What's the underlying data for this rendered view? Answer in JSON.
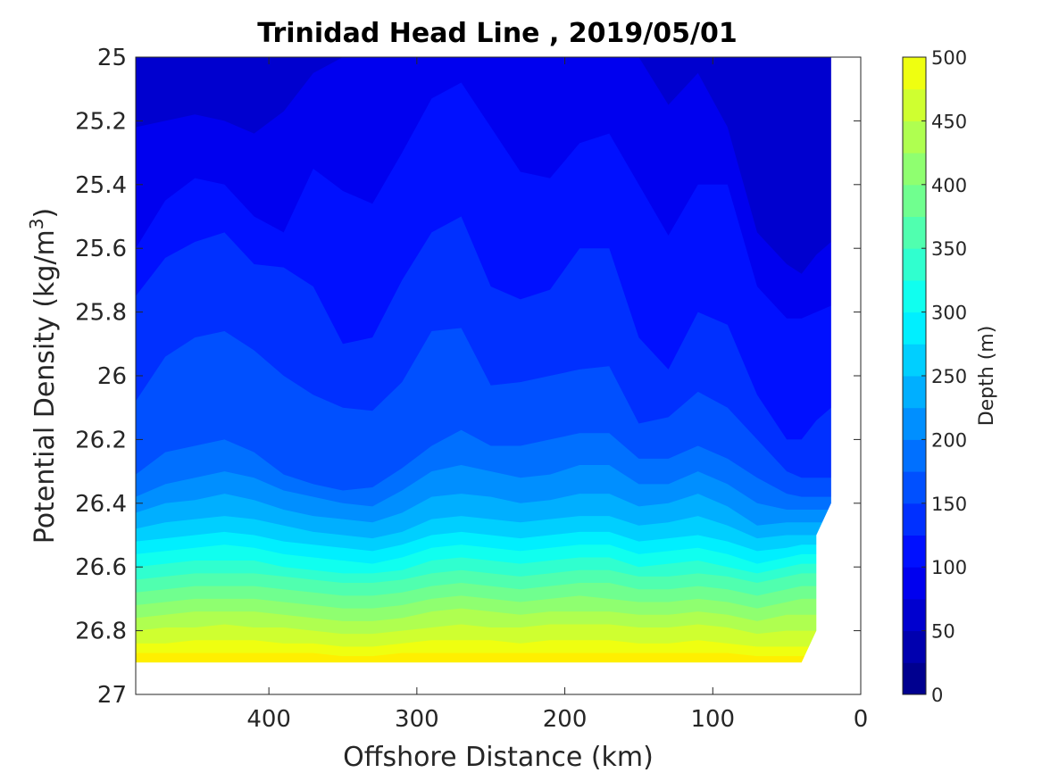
{
  "chart_data": {
    "type": "contour",
    "title": "Trinidad Head Line , 2019/05/01",
    "xlabel": "Offshore Distance (km)",
    "ylabel": "Potential Density (kg/m",
    "ylabel_superscript": "3",
    "ylabel_close": ")",
    "xlim": [
      490,
      0
    ],
    "ylim": [
      25,
      27
    ],
    "x_reversed": true,
    "y_reversed": true,
    "xticks": [
      400,
      300,
      200,
      100,
      0
    ],
    "yticks": [
      "25",
      "25.2",
      "25.4",
      "25.6",
      "25.8",
      "26",
      "26.2",
      "26.4",
      "26.6",
      "26.8",
      "27"
    ],
    "yticks_values": [
      25,
      25.2,
      25.4,
      25.6,
      25.8,
      26,
      26.2,
      26.4,
      26.6,
      26.8,
      27
    ],
    "colorbar": {
      "label": "Depth (m)",
      "range": [
        0,
        500
      ],
      "tick_values": [
        0,
        50,
        100,
        150,
        200,
        250,
        300,
        350,
        400,
        450,
        500
      ],
      "tick_labels": [
        "0",
        "50",
        "100",
        "150",
        "200",
        "250",
        "300",
        "350",
        "400",
        "450",
        "500"
      ],
      "level_step": 25
    },
    "colormap": [
      "#00008f",
      "#0000af",
      "#0000cf",
      "#0000ef",
      "#0010ff",
      "#0030ff",
      "#0050ff",
      "#0070ff",
      "#008fff",
      "#00afff",
      "#00cfff",
      "#00efff",
      "#10ffef",
      "#30ffcf",
      "#50ffaf",
      "#70ff8f",
      "#8fff70",
      "#afff50",
      "#cfff30",
      "#efff10",
      "#ffef00",
      "#ffcf00",
      "#ffaf00",
      "#ff8f00",
      "#ff7000",
      "#ff5000",
      "#ff3000",
      "#ff1000",
      "#ef0000",
      "#cf0000",
      "#af0000"
    ],
    "x": [
      490,
      470,
      450,
      430,
      410,
      390,
      370,
      350,
      330,
      310,
      290,
      270,
      250,
      230,
      210,
      190,
      170,
      150,
      130,
      110,
      90,
      70,
      50,
      40,
      30,
      20
    ],
    "contours": [
      {
        "depth": 25,
        "sigma": [
          25.0,
          25.0,
          25.0,
          25.0,
          25.0,
          25.0,
          25.0,
          25.0,
          25.0,
          25.0,
          25.0,
          25.0,
          25.0,
          25.0,
          25.0,
          25.0,
          25.0,
          25.0,
          25.0,
          25.0,
          25.0,
          25.0,
          25.0,
          25.0,
          25.0,
          25.0
        ]
      },
      {
        "depth": 50,
        "sigma": [
          25.0,
          25.0,
          25.0,
          25.0,
          25.0,
          25.0,
          25.0,
          25.0,
          25.0,
          25.0,
          25.0,
          25.0,
          25.0,
          25.0,
          25.0,
          25.0,
          25.0,
          25.0,
          25.0,
          25.0,
          25.0,
          25.0,
          25.0,
          25.0,
          25.0,
          25.0
        ]
      },
      {
        "depth": 75,
        "sigma": [
          25.22,
          25.2,
          25.18,
          25.2,
          25.24,
          25.17,
          25.05,
          25.0,
          25.0,
          25.0,
          25.0,
          25.0,
          25.0,
          25.0,
          25.0,
          25.0,
          25.0,
          25.0,
          25.15,
          25.05,
          25.22,
          25.55,
          25.65,
          25.68,
          25.62,
          25.58
        ]
      },
      {
        "depth": 100,
        "sigma": [
          25.6,
          25.45,
          25.38,
          25.4,
          25.5,
          25.55,
          25.35,
          25.42,
          25.46,
          25.3,
          25.13,
          25.08,
          25.22,
          25.36,
          25.38,
          25.27,
          25.24,
          25.4,
          25.56,
          25.4,
          25.4,
          25.72,
          25.82,
          25.82,
          25.8,
          25.78
        ]
      },
      {
        "depth": 125,
        "sigma": [
          25.75,
          25.63,
          25.58,
          25.55,
          25.65,
          25.66,
          25.72,
          25.9,
          25.88,
          25.7,
          25.55,
          25.5,
          25.72,
          25.76,
          25.73,
          25.6,
          25.6,
          25.88,
          25.98,
          25.8,
          25.84,
          26.06,
          26.2,
          26.2,
          26.14,
          26.1
        ]
      },
      {
        "depth": 150,
        "sigma": [
          26.08,
          25.94,
          25.88,
          25.86,
          25.92,
          26.0,
          26.06,
          26.1,
          26.11,
          26.02,
          25.86,
          25.85,
          26.03,
          26.02,
          26.0,
          25.98,
          25.97,
          26.15,
          26.13,
          26.05,
          26.1,
          26.2,
          26.3,
          26.32,
          26.32,
          26.32
        ]
      },
      {
        "depth": 175,
        "sigma": [
          26.31,
          26.24,
          26.22,
          26.2,
          26.24,
          26.31,
          26.34,
          26.36,
          26.35,
          26.29,
          26.22,
          26.17,
          26.22,
          26.22,
          26.2,
          26.18,
          26.18,
          26.26,
          26.26,
          26.22,
          26.26,
          26.32,
          26.37,
          26.38,
          26.38,
          26.38
        ]
      },
      {
        "depth": 200,
        "sigma": [
          26.38,
          26.34,
          26.32,
          26.3,
          26.32,
          26.36,
          26.38,
          26.4,
          26.41,
          26.36,
          26.3,
          26.28,
          26.3,
          26.32,
          26.31,
          26.28,
          26.28,
          26.34,
          26.34,
          26.3,
          26.34,
          26.4,
          26.42,
          26.42,
          26.42,
          26.42
        ]
      },
      {
        "depth": 225,
        "sigma": [
          26.43,
          26.4,
          26.39,
          26.37,
          26.39,
          26.42,
          26.44,
          26.45,
          26.46,
          26.43,
          26.38,
          26.37,
          26.38,
          26.4,
          26.39,
          26.37,
          26.37,
          26.41,
          26.4,
          26.37,
          26.41,
          26.47,
          26.46,
          26.46,
          26.46,
          26.46
        ]
      },
      {
        "depth": 250,
        "sigma": [
          26.48,
          26.46,
          26.45,
          26.44,
          26.45,
          26.47,
          26.49,
          26.5,
          26.51,
          26.49,
          26.45,
          26.44,
          26.45,
          26.46,
          26.45,
          26.44,
          26.44,
          26.47,
          26.46,
          26.44,
          26.47,
          26.51,
          26.5,
          26.5,
          26.5,
          26.5
        ]
      },
      {
        "depth": 275,
        "sigma": [
          26.52,
          26.51,
          26.5,
          26.49,
          26.5,
          26.52,
          26.53,
          26.54,
          26.55,
          26.53,
          26.5,
          26.49,
          26.5,
          26.51,
          26.5,
          26.49,
          26.49,
          26.52,
          26.51,
          26.5,
          26.52,
          26.55,
          26.54,
          26.53,
          26.53,
          26.53
        ]
      },
      {
        "depth": 300,
        "sigma": [
          26.56,
          26.55,
          26.54,
          26.53,
          26.54,
          26.56,
          26.57,
          26.58,
          26.59,
          26.57,
          26.54,
          26.53,
          26.54,
          26.55,
          26.54,
          26.53,
          26.53,
          26.56,
          26.55,
          26.54,
          26.56,
          26.59,
          26.57,
          26.56,
          26.56,
          26.56
        ]
      },
      {
        "depth": 325,
        "sigma": [
          26.6,
          26.59,
          26.58,
          26.58,
          26.58,
          26.6,
          26.61,
          26.62,
          26.62,
          26.61,
          26.58,
          26.57,
          26.58,
          26.59,
          26.58,
          26.57,
          26.57,
          26.6,
          26.59,
          26.58,
          26.6,
          26.62,
          26.6,
          26.59,
          26.59,
          26.59
        ]
      },
      {
        "depth": 350,
        "sigma": [
          26.64,
          26.63,
          26.62,
          26.62,
          26.62,
          26.63,
          26.64,
          26.65,
          26.65,
          26.64,
          26.62,
          26.61,
          26.62,
          26.63,
          26.62,
          26.61,
          26.61,
          26.63,
          26.63,
          26.62,
          26.63,
          26.65,
          26.63,
          26.62,
          26.62,
          26.62
        ]
      },
      {
        "depth": 375,
        "sigma": [
          26.68,
          26.67,
          26.66,
          26.66,
          26.66,
          26.67,
          26.68,
          26.69,
          26.69,
          26.68,
          26.66,
          26.65,
          26.66,
          26.67,
          26.66,
          26.65,
          26.65,
          26.67,
          26.67,
          26.66,
          26.67,
          26.69,
          26.67,
          26.66,
          26.66,
          26.66
        ]
      },
      {
        "depth": 400,
        "sigma": [
          26.72,
          26.71,
          26.7,
          26.7,
          26.7,
          26.71,
          26.72,
          26.73,
          26.73,
          26.72,
          26.7,
          26.69,
          26.7,
          26.71,
          26.7,
          26.69,
          26.7,
          26.71,
          26.71,
          26.7,
          26.71,
          26.73,
          26.71,
          26.7,
          26.7,
          26.7
        ]
      },
      {
        "depth": 425,
        "sigma": [
          26.76,
          26.75,
          26.74,
          26.74,
          26.74,
          26.75,
          26.76,
          26.77,
          26.77,
          26.76,
          26.74,
          26.73,
          26.74,
          26.75,
          26.74,
          26.74,
          26.74,
          26.75,
          26.75,
          26.74,
          26.75,
          26.77,
          26.75,
          26.75,
          26.75,
          26.75
        ]
      },
      {
        "depth": 450,
        "sigma": [
          26.8,
          26.79,
          26.79,
          26.78,
          26.79,
          26.79,
          26.8,
          26.81,
          26.81,
          26.8,
          26.79,
          26.78,
          26.79,
          26.79,
          26.78,
          26.78,
          26.78,
          26.79,
          26.79,
          26.78,
          26.79,
          26.81,
          26.8,
          26.8,
          26.8,
          26.8
        ]
      },
      {
        "depth": 475,
        "sigma": [
          26.84,
          26.84,
          26.83,
          26.83,
          26.83,
          26.84,
          26.84,
          26.85,
          26.85,
          26.84,
          26.83,
          26.83,
          26.83,
          26.84,
          26.83,
          26.83,
          26.83,
          26.84,
          26.84,
          26.83,
          26.84,
          26.85,
          26.85,
          26.85,
          26.85,
          26.85
        ]
      },
      {
        "depth": 500,
        "sigma": [
          26.87,
          26.87,
          26.87,
          26.87,
          26.87,
          26.87,
          26.87,
          26.88,
          26.88,
          26.87,
          26.87,
          26.87,
          26.87,
          26.87,
          26.87,
          26.87,
          26.87,
          26.87,
          26.87,
          26.87,
          26.87,
          26.88,
          26.88,
          26.88,
          26.88,
          26.88
        ]
      }
    ],
    "data_bottom_sigma": 26.9,
    "nodata_boundary": [
      {
        "x": 20,
        "sigma": 25.0
      },
      {
        "x": 20,
        "sigma": 26.4
      },
      {
        "x": 30,
        "sigma": 26.5
      },
      {
        "x": 30,
        "sigma": 26.8
      },
      {
        "x": 40,
        "sigma": 26.9
      }
    ]
  }
}
